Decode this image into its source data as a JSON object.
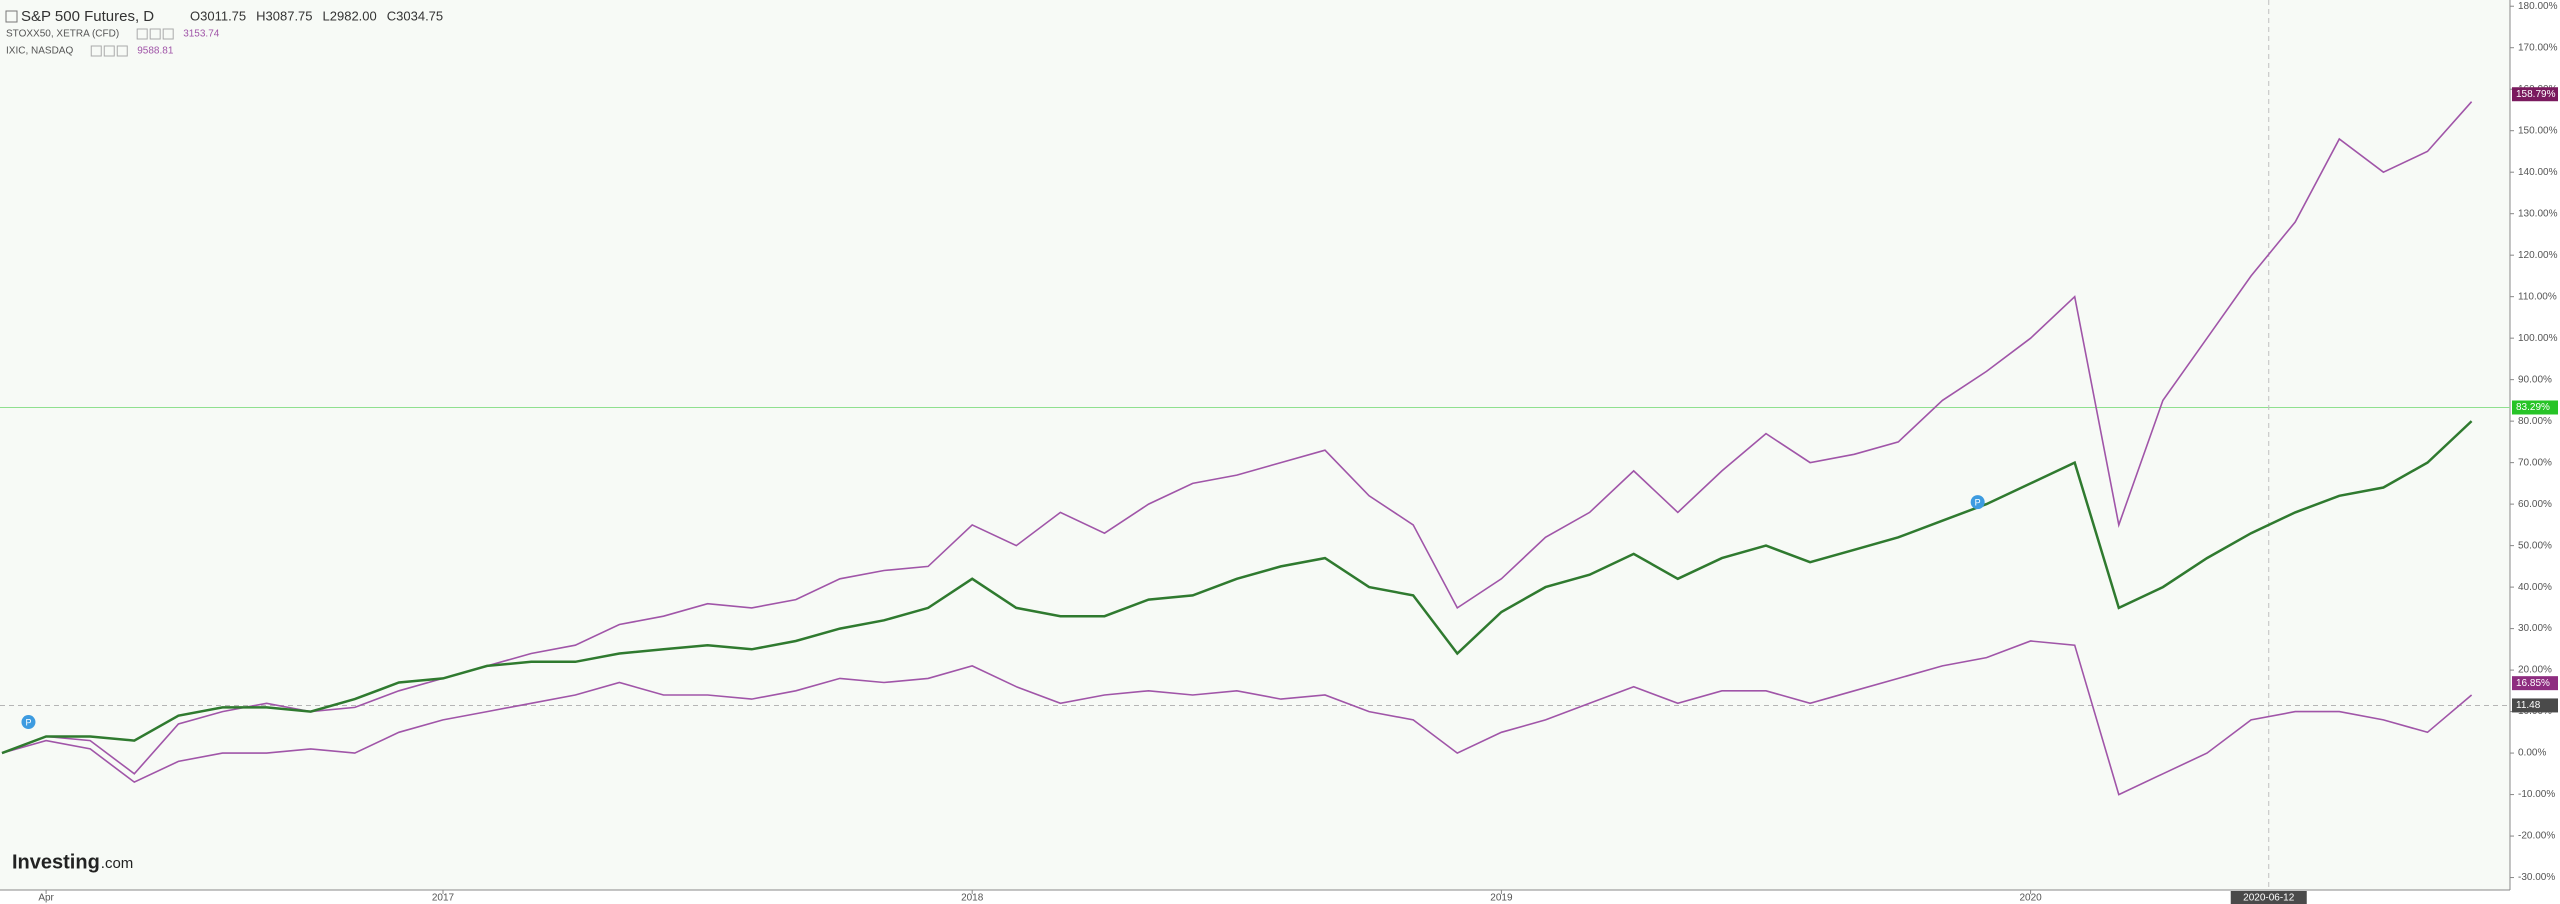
{
  "chart_data": {
    "type": "line",
    "header": {
      "title": "S&P 500 Futures, D",
      "ohlc": [
        "O3011.75",
        "H3087.75",
        "L2982.00",
        "C3034.75"
      ]
    },
    "categories": [
      null,
      "Apr",
      null,
      null,
      null,
      null,
      null,
      null,
      null,
      null,
      "2017",
      null,
      null,
      null,
      null,
      null,
      null,
      null,
      null,
      null,
      null,
      null,
      "2018",
      null,
      null,
      null,
      null,
      null,
      null,
      null,
      null,
      null,
      null,
      null,
      "2019",
      null,
      null,
      null,
      null,
      null,
      null,
      null,
      null,
      null,
      null,
      null,
      "2020",
      null,
      null,
      null,
      null,
      null,
      null,
      null,
      null,
      null,
      null
    ],
    "series": [
      {
        "name": "IXIC, NASDAQ",
        "last": 9588.81,
        "color": "#a055a8",
        "values": [
          0,
          4,
          3,
          -5,
          7,
          10,
          12,
          10,
          11,
          15,
          18,
          21,
          24,
          26,
          31,
          33,
          36,
          35,
          37,
          42,
          44,
          45,
          55,
          50,
          58,
          53,
          60,
          65,
          67,
          70,
          73,
          62,
          55,
          35,
          42,
          52,
          58,
          68,
          58,
          68,
          77,
          70,
          72,
          75,
          85,
          92,
          100,
          110,
          55,
          85,
          100,
          115,
          128,
          148,
          140,
          145,
          157
        ]
      },
      {
        "name": "STOXX50, XETRA (CFD)",
        "last": 3153.74,
        "color": "#a055a8",
        "values": [
          0,
          3,
          1,
          -7,
          -2,
          0,
          0,
          1,
          0,
          5,
          8,
          10,
          12,
          14,
          17,
          14,
          14,
          13,
          15,
          18,
          17,
          18,
          21,
          16,
          12,
          14,
          15,
          14,
          15,
          13,
          14,
          10,
          8,
          0,
          5,
          8,
          12,
          16,
          12,
          15,
          15,
          12,
          15,
          18,
          21,
          23,
          27,
          26,
          -10,
          -5,
          0,
          8,
          10,
          10,
          8,
          5,
          14
        ]
      },
      {
        "name": "S&P 500 Futures, D",
        "color": "#2f7a2f",
        "values": [
          0,
          4,
          4,
          3,
          9,
          11,
          11,
          10,
          13,
          17,
          18,
          21,
          22,
          22,
          24,
          25,
          26,
          25,
          27,
          30,
          32,
          35,
          42,
          35,
          33,
          33,
          37,
          38,
          42,
          45,
          47,
          40,
          38,
          24,
          34,
          40,
          43,
          48,
          42,
          47,
          50,
          46,
          49,
          52,
          56,
          60,
          65,
          70,
          35,
          40,
          47,
          53,
          58,
          62,
          64,
          70,
          80
        ]
      }
    ],
    "ylim": [
      -33,
      181.5
    ],
    "yticks": [
      {
        "value": -30,
        "label": "-30.00%"
      },
      {
        "value": -20,
        "label": "-20.00%"
      },
      {
        "value": -10,
        "label": "-10.00%"
      },
      {
        "value": 0,
        "label": "0.00%"
      },
      {
        "value": 10,
        "label": "10.00%"
      },
      {
        "value": 20,
        "label": "20.00%"
      },
      {
        "value": 30,
        "label": "30.00%"
      },
      {
        "value": 40,
        "label": "40.00%"
      },
      {
        "value": 50,
        "label": "50.00%"
      },
      {
        "value": 60,
        "label": "60.00%"
      },
      {
        "value": 70,
        "label": "70.00%"
      },
      {
        "value": 80,
        "label": "80.00%"
      },
      {
        "value": 90,
        "label": "90.00%"
      },
      {
        "value": 100,
        "label": "100.00%"
      },
      {
        "value": 110,
        "label": "110.00%"
      },
      {
        "value": 120,
        "label": "120.00%"
      },
      {
        "value": 130,
        "label": "130.00%"
      },
      {
        "value": 140,
        "label": "140.00%"
      },
      {
        "value": 150,
        "label": "150.00%"
      },
      {
        "value": 160,
        "label": "160.00%"
      },
      {
        "value": 170,
        "label": "170.00%"
      },
      {
        "value": 180,
        "label": "180.00%"
      }
    ],
    "price_labels": [
      {
        "value": 158.79,
        "label": "158.79%",
        "color": "#7a1a5e"
      },
      {
        "value": 83.29,
        "label": "83.29%",
        "color": "#27c427"
      },
      {
        "value": 16.85,
        "label": "16.85%",
        "color": "#8e2d80"
      },
      {
        "value": 11.48,
        "color": "#4a4a4a"
      }
    ],
    "crosshair_label": "2020-06-12",
    "event_markers": [
      "P",
      "P"
    ],
    "watermark": {
      "brand": "Investing",
      "suffix": ".com"
    }
  }
}
